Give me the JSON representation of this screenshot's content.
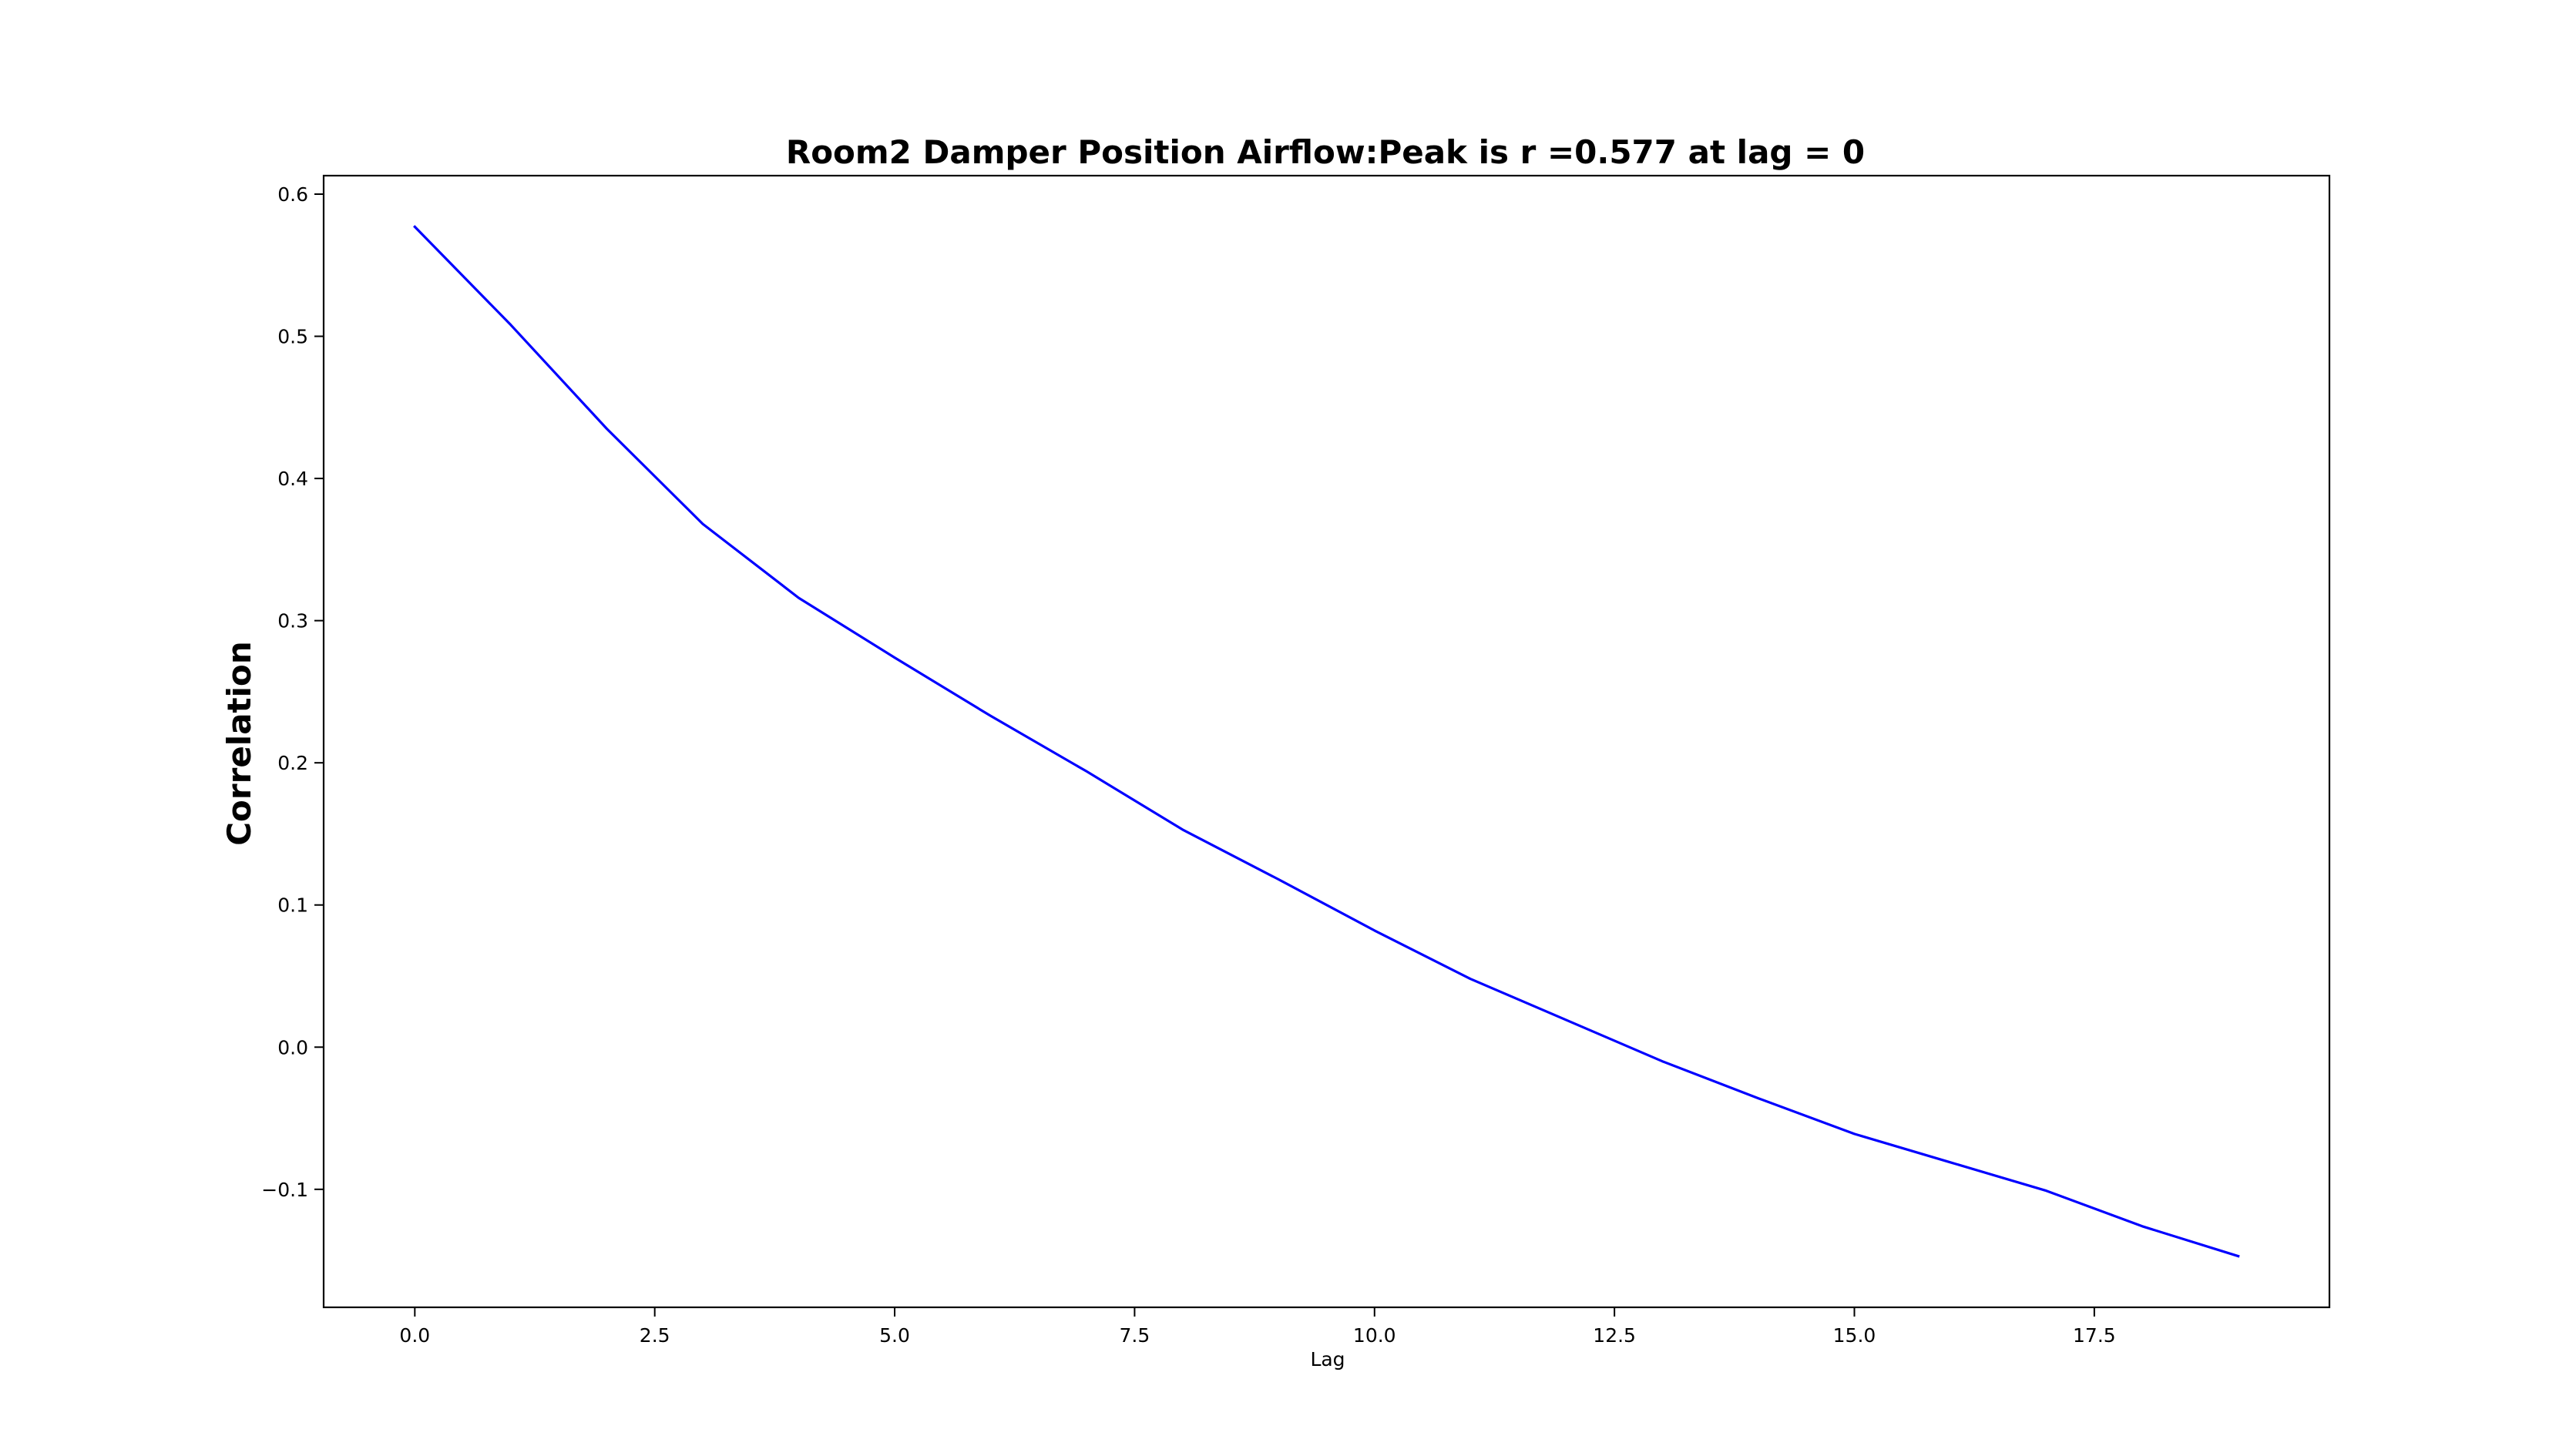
{
  "chart_data": {
    "type": "line",
    "title": "Room2 Damper Position Airflow:Peak is r =0.577 at lag = 0",
    "xlabel": "Lag",
    "ylabel": "Correlation",
    "xlim": [
      -0.95,
      19.95
    ],
    "ylim": [
      -0.183,
      0.613
    ],
    "xticks": [
      0,
      2.5,
      5,
      7.5,
      10,
      12.5,
      15,
      17.5
    ],
    "xtick_labels": [
      "0.0",
      "2.5",
      "5.0",
      "7.5",
      "10.0",
      "12.5",
      "15.0",
      "17.5"
    ],
    "yticks": [
      -0.1,
      0,
      0.1,
      0.2,
      0.3,
      0.4,
      0.5,
      0.6
    ],
    "ytick_labels": [
      "−0.1",
      "0.0",
      "0.1",
      "0.2",
      "0.3",
      "0.4",
      "0.5",
      "0.6"
    ],
    "grid": false,
    "legend": "none",
    "series": [
      {
        "color": "#0000ff",
        "x": [
          0,
          1,
          2,
          3,
          4,
          5,
          6,
          7,
          8,
          9,
          10,
          11,
          12,
          13,
          14,
          15,
          16,
          17,
          18,
          19
        ],
        "y": [
          0.577,
          0.508,
          0.435,
          0.368,
          0.316,
          0.274,
          0.233,
          0.194,
          0.153,
          0.118,
          0.082,
          0.048,
          0.019,
          -0.01,
          -0.036,
          -0.061,
          -0.081,
          -0.101,
          -0.126,
          -0.147
        ]
      }
    ]
  }
}
